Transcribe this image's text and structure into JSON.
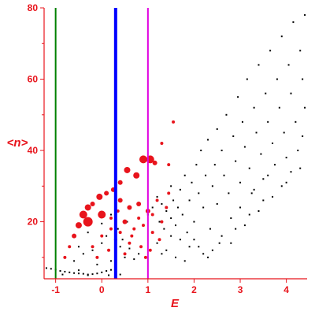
{
  "chart_data": {
    "type": "scatter",
    "title": "",
    "xlabel": "E",
    "ylabel": "<n>",
    "xlim": [
      -1.25,
      4.45
    ],
    "ylim": [
      4,
      80
    ],
    "xticks": [
      -1,
      0,
      1,
      2,
      3,
      4
    ],
    "yticks": [
      20,
      40,
      60,
      80
    ],
    "grid": false,
    "legend": "none",
    "colors": {
      "axis": "#e8141c",
      "small_points": "#000000",
      "large_points": "#e8141c",
      "line_green": "#008000",
      "line_blue": "#0000ff",
      "line_magenta": "#e000e0"
    },
    "vertical_lines": [
      {
        "x": -1.0,
        "color": "#008000"
      },
      {
        "x": 0.3,
        "color": "#0000ff"
      },
      {
        "x": 1.0,
        "color": "#e000e0"
      }
    ],
    "series": [
      {
        "marker": "small-black",
        "points": [
          [
            -1.2,
            7.0
          ],
          [
            -1.1,
            6.8
          ],
          [
            -1.0,
            6.6
          ],
          [
            -0.9,
            6.2
          ],
          [
            -0.8,
            6.0
          ],
          [
            -0.7,
            5.8
          ],
          [
            -0.6,
            5.6
          ],
          [
            -0.5,
            5.5
          ],
          [
            -0.4,
            5.4
          ],
          [
            -0.3,
            5.2
          ],
          [
            -0.2,
            5.3
          ],
          [
            -0.1,
            5.5
          ],
          [
            0.0,
            5.8
          ],
          [
            0.1,
            6.2
          ],
          [
            0.2,
            6.5
          ],
          [
            -0.85,
            5.2
          ],
          [
            -0.5,
            6.4
          ],
          [
            -0.3,
            5.0
          ],
          [
            0.15,
            5.0
          ],
          [
            0.4,
            5.2
          ],
          [
            -0.6,
            9.0
          ],
          [
            -0.4,
            11.0
          ],
          [
            -0.2,
            12.0
          ],
          [
            0.0,
            14.0
          ],
          [
            0.1,
            16.0
          ],
          [
            -0.1,
            8.0
          ],
          [
            0.2,
            9.0
          ],
          [
            0.3,
            11.0
          ],
          [
            0.4,
            13.0
          ],
          [
            0.5,
            10.0
          ],
          [
            0.6,
            12.5
          ],
          [
            0.7,
            9.5
          ],
          [
            0.8,
            11.0
          ],
          [
            -0.5,
            13.0
          ],
          [
            -0.3,
            17.0
          ],
          [
            0.0,
            19.5
          ],
          [
            0.2,
            22.0
          ],
          [
            0.35,
            18.0
          ],
          [
            0.45,
            15.0
          ],
          [
            0.55,
            20.0
          ],
          [
            1.0,
            22.0
          ],
          [
            1.1,
            24.0
          ],
          [
            1.2,
            27.0
          ],
          [
            1.25,
            20.0
          ],
          [
            1.3,
            25.0
          ],
          [
            1.35,
            18.0
          ],
          [
            1.4,
            23.0
          ],
          [
            1.45,
            28.0
          ],
          [
            1.5,
            21.0
          ],
          [
            1.5,
            30.0
          ],
          [
            1.55,
            26.0
          ],
          [
            1.6,
            19.0
          ],
          [
            1.65,
            24.0
          ],
          [
            1.7,
            29.0
          ],
          [
            1.75,
            22.0
          ],
          [
            1.8,
            33.0
          ],
          [
            1.85,
            17.0
          ],
          [
            1.9,
            26.0
          ],
          [
            1.95,
            31.0
          ],
          [
            2.0,
            15.0
          ],
          [
            2.0,
            20.0
          ],
          [
            2.05,
            36.0
          ],
          [
            2.1,
            28.0
          ],
          [
            2.1,
            13.0
          ],
          [
            2.15,
            40.0
          ],
          [
            2.2,
            24.0
          ],
          [
            2.25,
            33.0
          ],
          [
            2.3,
            43.0
          ],
          [
            2.35,
            18.0
          ],
          [
            2.4,
            30.0
          ],
          [
            2.45,
            36.0
          ],
          [
            2.5,
            46.0
          ],
          [
            2.5,
            25.0
          ],
          [
            2.55,
            14.0
          ],
          [
            2.6,
            40.0
          ],
          [
            2.65,
            33.0
          ],
          [
            2.7,
            50.0
          ],
          [
            2.75,
            28.0
          ],
          [
            2.8,
            21.0
          ],
          [
            2.85,
            44.0
          ],
          [
            2.9,
            37.0
          ],
          [
            2.95,
            55.0
          ],
          [
            3.0,
            31.0
          ],
          [
            3.0,
            24.0
          ],
          [
            3.05,
            48.0
          ],
          [
            3.1,
            41.0
          ],
          [
            3.15,
            60.0
          ],
          [
            3.2,
            35.0
          ],
          [
            3.25,
            28.0
          ],
          [
            3.3,
            52.0
          ],
          [
            3.35,
            45.0
          ],
          [
            3.4,
            64.0
          ],
          [
            3.45,
            39.0
          ],
          [
            3.5,
            32.0
          ],
          [
            3.55,
            56.0
          ],
          [
            3.6,
            48.0
          ],
          [
            3.65,
            68.0
          ],
          [
            3.7,
            42.0
          ],
          [
            3.75,
            36.0
          ],
          [
            3.8,
            60.0
          ],
          [
            3.85,
            52.0
          ],
          [
            3.9,
            72.0
          ],
          [
            3.95,
            45.0
          ],
          [
            4.0,
            38.0
          ],
          [
            4.05,
            64.0
          ],
          [
            4.1,
            56.0
          ],
          [
            4.15,
            76.0
          ],
          [
            4.2,
            48.0
          ],
          [
            4.25,
            40.0
          ],
          [
            4.3,
            68.0
          ],
          [
            4.35,
            60.0
          ],
          [
            4.4,
            78.0
          ],
          [
            4.4,
            52.0
          ],
          [
            4.35,
            44.0
          ],
          [
            4.1,
            34.0
          ],
          [
            3.9,
            30.0
          ],
          [
            3.5,
            26.0
          ],
          [
            3.2,
            22.0
          ],
          [
            2.9,
            18.0
          ],
          [
            2.6,
            16.0
          ],
          [
            1.2,
            14.0
          ],
          [
            1.4,
            12.0
          ],
          [
            1.6,
            10.0
          ],
          [
            1.8,
            9.0
          ],
          [
            1.3,
            11.0
          ],
          [
            1.5,
            16.0
          ],
          [
            1.7,
            15.0
          ],
          [
            1.9,
            13.0
          ],
          [
            2.2,
            11.0
          ],
          [
            2.4,
            12.0
          ],
          [
            2.3,
            10.0
          ],
          [
            1.1,
            17.0
          ],
          [
            2.8,
            14.0
          ],
          [
            3.1,
            19.0
          ],
          [
            3.4,
            23.0
          ],
          [
            3.7,
            27.0
          ],
          [
            4.0,
            31.0
          ],
          [
            4.3,
            35.0
          ],
          [
            3.3,
            29.0
          ],
          [
            3.6,
            33.0
          ]
        ]
      },
      {
        "marker": "large-red",
        "points": [
          [
            -0.8,
            10.0,
            2
          ],
          [
            -0.7,
            13.0,
            2
          ],
          [
            -0.6,
            16.0,
            3
          ],
          [
            -0.5,
            19.0,
            4
          ],
          [
            -0.4,
            22.0,
            5
          ],
          [
            -0.3,
            24.0,
            4
          ],
          [
            -0.2,
            25.0,
            3
          ],
          [
            -0.05,
            27.0,
            4
          ],
          [
            0.1,
            28.0,
            3
          ],
          [
            0.25,
            29.0,
            3
          ],
          [
            0.4,
            31.0,
            3
          ],
          [
            0.55,
            34.5,
            4
          ],
          [
            0.75,
            33.0,
            4
          ],
          [
            0.9,
            37.5,
            5
          ],
          [
            1.05,
            37.5,
            5
          ],
          [
            1.15,
            36.5,
            3
          ],
          [
            1.3,
            42.0,
            2
          ],
          [
            1.45,
            36.0,
            2
          ],
          [
            1.55,
            48.0,
            2
          ],
          [
            0.4,
            26.0,
            3
          ],
          [
            0.6,
            24.0,
            3
          ],
          [
            0.8,
            25.0,
            3
          ],
          [
            1.0,
            23.0,
            3
          ],
          [
            1.1,
            22.0,
            2
          ],
          [
            0.2,
            21.0,
            2
          ],
          [
            0.5,
            20.0,
            3
          ],
          [
            0.7,
            18.0,
            2
          ],
          [
            0.9,
            19.0,
            2
          ],
          [
            1.1,
            17.0,
            2
          ],
          [
            0.0,
            16.0,
            2
          ],
          [
            0.3,
            15.0,
            2
          ],
          [
            0.6,
            14.0,
            2
          ],
          [
            0.85,
            13.0,
            2
          ],
          [
            1.05,
            12.0,
            2
          ],
          [
            -0.2,
            13.0,
            2
          ],
          [
            -0.3,
            20.0,
            6
          ],
          [
            0.0,
            22.0,
            5
          ],
          [
            0.2,
            18.0,
            2
          ],
          [
            0.4,
            17.0,
            2
          ],
          [
            0.65,
            16.0,
            2
          ],
          [
            0.8,
            21.0,
            2
          ],
          [
            1.2,
            26.0,
            2
          ],
          [
            1.3,
            20.0,
            2
          ],
          [
            1.4,
            24.0,
            2
          ],
          [
            1.45,
            28.0,
            2
          ],
          [
            0.35,
            23.0,
            2
          ],
          [
            0.15,
            12.0,
            2
          ],
          [
            -0.1,
            10.0,
            2
          ],
          [
            0.5,
            11.0,
            2
          ],
          [
            0.95,
            10.0,
            2
          ],
          [
            1.25,
            15.0,
            2
          ]
        ]
      }
    ]
  }
}
